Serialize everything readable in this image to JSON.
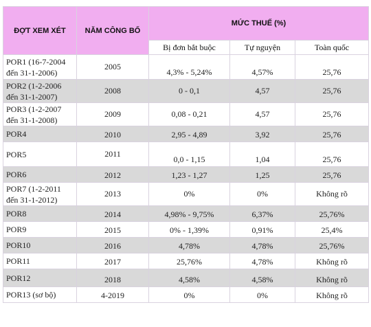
{
  "header": {
    "col_period": "ĐỢT XEM XÉT",
    "col_year": "NĂM CÔNG BỐ",
    "col_tax": "MỨC THUẾ (%)",
    "sub_mandatory": "Bị đơn bắt buộc",
    "sub_voluntary": "Tự nguyện",
    "sub_nationwide": "Toàn quốc"
  },
  "rows": [
    {
      "period": "POR1 (16-7-2004 đến 31-1-2006)",
      "year": "2005",
      "mandatory": "4,3% - 5,24%",
      "voluntary": "4,57%",
      "nationwide": "25,76"
    },
    {
      "period": "POR2 (1-2-2006 đến 31-1-2007)",
      "year": "2008",
      "mandatory": "0 - 0,1",
      "voluntary": "4,57",
      "nationwide": "25,76"
    },
    {
      "period": "POR3 (1-2-2007 đến 31-1-2008)",
      "year": "2009",
      "mandatory": "0,08 - 0,21",
      "voluntary": "4,57",
      "nationwide": "25,76"
    },
    {
      "period": "POR4",
      "year": "2010",
      "mandatory": "2,95 - 4,89",
      "voluntary": "3,92",
      "nationwide": "25,76"
    },
    {
      "period": "POR5",
      "year": "2011",
      "mandatory": "0,0 - 1,15",
      "voluntary": "1,04",
      "nationwide": "25,76"
    },
    {
      "period": "POR6",
      "year": "2012",
      "mandatory": "1,23 - 1,27",
      "voluntary": "1,25",
      "nationwide": "25,76"
    },
    {
      "period": "POR7 (1-2-2011 đến 31-1-2012)",
      "year": "2013",
      "mandatory": "0%",
      "voluntary": "0%",
      "nationwide": "Không rõ"
    },
    {
      "period": "POR8",
      "year": "2014",
      "mandatory": "4,98% - 9,75%",
      "voluntary": "6,37%",
      "nationwide": "25,76%"
    },
    {
      "period": "POR9",
      "year": "2015",
      "mandatory": "0% - 1,39%",
      "voluntary": "0,91%",
      "nationwide": "25,4%"
    },
    {
      "period": "POR10",
      "year": "2016",
      "mandatory": "4,78%",
      "voluntary": "4,78%",
      "nationwide": "25,76%"
    },
    {
      "period": "POR11",
      "year": "2017",
      "mandatory": "25,76%",
      "voluntary": "4,78%",
      "nationwide": "Không rõ"
    },
    {
      "period": "POR12",
      "year": "2018",
      "mandatory": "4,58%",
      "voluntary": "4,58%",
      "nationwide": "Không rõ"
    },
    {
      "period": "POR13 (sơ bộ)",
      "year": "4-2019",
      "mandatory": "0%",
      "voluntary": "0%",
      "nationwide": "Không rõ"
    }
  ],
  "colors": {
    "header_bg": "#f1aef0",
    "shaded_row": "#d9d9d9",
    "border": "#d9d2df"
  }
}
